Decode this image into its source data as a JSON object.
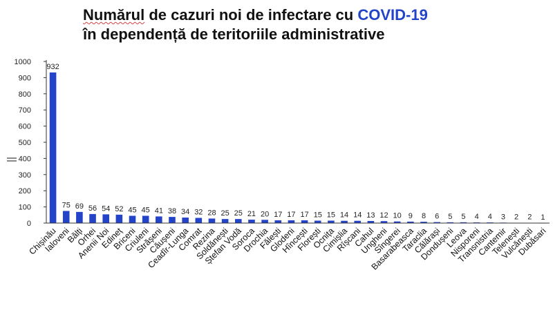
{
  "title_line1_a": "Numărul",
  "title_line1_b": " de cazuri noi de infectare cu ",
  "title_line1_c": "COVID-19",
  "title_line2": "în dependență de teritoriile administrative",
  "colors": {
    "bar": "#2343c8",
    "axis": "#333333",
    "accent": "#2343c8"
  },
  "chart_data": {
    "type": "bar",
    "title": "Numărul de cazuri noi de infectare cu COVID-19 în dependență de teritoriile administrative",
    "xlabel": "",
    "ylabel": "",
    "ylim": [
      0,
      1000
    ],
    "yticks": [
      0,
      100,
      200,
      300,
      400,
      500,
      600,
      700,
      800,
      900,
      1000
    ],
    "grid": false,
    "categories": [
      "Chișinău",
      "Ialoveni",
      "Bălți",
      "Orhei",
      "Anenii Noi",
      "Edineț",
      "Briceni",
      "Criuleni",
      "Strășeni",
      "Căușeni",
      "Ceadîr-Lunga",
      "Comrat",
      "Rezina",
      "Soldănești",
      "Ștefan Vodă",
      "Soroca",
      "Drochia",
      "Fălești",
      "Glodeni",
      "Hîncești",
      "Florești",
      "Ocnița",
      "Cimișlia",
      "Rîșcani",
      "Cahul",
      "Ungheni",
      "Sîngerei",
      "Basarabeasca",
      "Taraclia",
      "Călărași",
      "Dondușeni",
      "Leova",
      "Nisporeni",
      "Transnistria",
      "Cantemir",
      "Telenești",
      "Vulcănești",
      "Dubăsari"
    ],
    "values": [
      932,
      75,
      69,
      56,
      54,
      52,
      45,
      45,
      41,
      38,
      34,
      32,
      28,
      25,
      25,
      21,
      20,
      17,
      17,
      17,
      15,
      15,
      14,
      14,
      13,
      12,
      10,
      9,
      8,
      6,
      5,
      5,
      4,
      4,
      3,
      2,
      2,
      1
    ]
  }
}
